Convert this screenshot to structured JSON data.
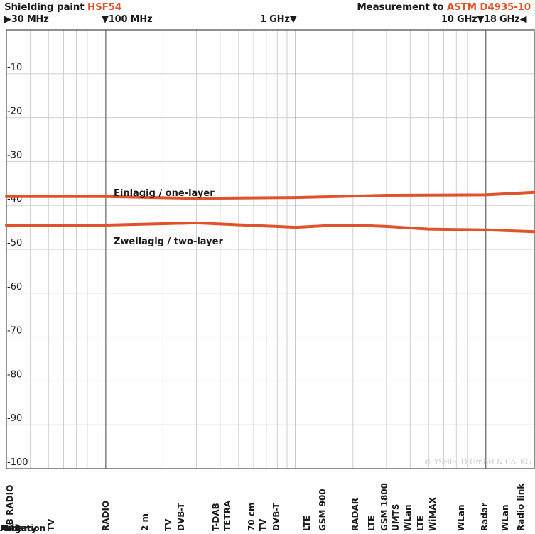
{
  "header": {
    "title_prefix": "Shielding paint ",
    "title_product": "HSF54",
    "measurement_prefix": "Measurement to ",
    "measurement_standard": "ASTM D4935-10"
  },
  "freq_markers": [
    {
      "text": "▶30 MHz"
    },
    {
      "text": "▼100 MHz"
    },
    {
      "text": "1 GHz▼"
    },
    {
      "text": "10 GHz▼"
    },
    {
      "text": "18 GHz◀"
    }
  ],
  "copyright": "© YSHIELD GmbH & Co. KG",
  "colors": {
    "accent": "#e0532a",
    "curve": "#e0532a",
    "major_grid": "#6e6e6e",
    "minor_grid": "#cfcfcf",
    "border": "#555555"
  },
  "chart_data": {
    "type": "line",
    "title": "Shielding paint HSF54",
    "x_scale": "log",
    "x_unit": "MHz",
    "xlim": [
      30,
      18000
    ],
    "ylim": [
      -100,
      0
    ],
    "y_ticks": [
      -10,
      -20,
      -30,
      -40,
      -50,
      -60,
      -70,
      -80,
      -90,
      -100
    ],
    "grid": true,
    "series": [
      {
        "name": "Einlagig / one-layer",
        "x": [
          30,
          100,
          300,
          1000,
          3000,
          10000,
          18000
        ],
        "y": [
          -38,
          -38,
          -38.4,
          -38.2,
          -37.7,
          -37.6,
          -37
        ]
      },
      {
        "name": "Zweilagig / two-layer",
        "x": [
          30,
          100,
          300,
          1000,
          1500,
          2000,
          3000,
          5000,
          10000,
          18000
        ],
        "y": [
          -44.5,
          -44.5,
          -44,
          -45,
          -44.6,
          -44.5,
          -44.8,
          -45.4,
          -45.6,
          -46
        ]
      }
    ],
    "bands": [
      [
        "CB RADIO"
      ],
      [
        "TV"
      ],
      [
        "RADIO"
      ],
      [
        "2 m"
      ],
      [
        "TV"
      ],
      [
        "DVB-T",
        "T-DAB"
      ],
      [
        "TETRA",
        "70 cm"
      ],
      [
        "TV"
      ],
      [
        "DVB-T"
      ],
      [
        "LTE"
      ],
      [
        "GSM 900"
      ],
      [
        "RADAR",
        "LTE"
      ],
      [
        "GSM 1800"
      ],
      [
        "UMTS",
        "WLan",
        "LTE"
      ],
      [
        "WiMAX",
        "WLan",
        "Radar",
        "WLan"
      ],
      [
        "Radio link"
      ],
      [
        "Radar"
      ],
      [
        "Avigation",
        "Military"
      ]
    ]
  }
}
